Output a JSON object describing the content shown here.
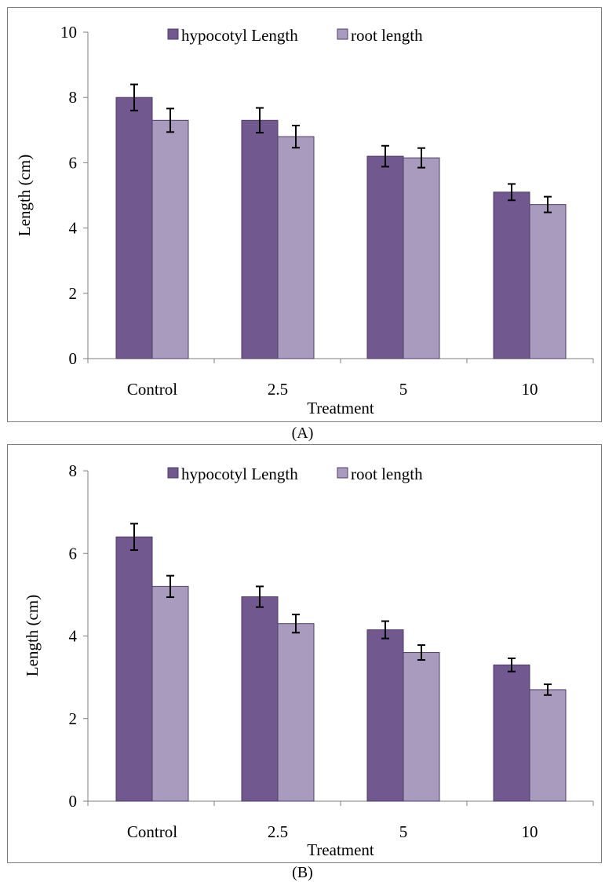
{
  "colors": {
    "hypocotyl": "#71588f",
    "root": "#a99bbd",
    "bar_stroke": "#4f3b69",
    "axis": "#7f7f7f"
  },
  "chart_data": [
    {
      "id": "A",
      "type": "bar",
      "caption": "(A)",
      "xlabel": "Treatment",
      "ylabel": "Length (cm)",
      "categories": [
        "Control",
        "2.5",
        "5",
        "10"
      ],
      "ylim": [
        0,
        10
      ],
      "yticks": [
        0,
        2,
        4,
        6,
        8,
        10
      ],
      "legend_position": "top-center",
      "grid": false,
      "series": [
        {
          "name": "hypocotyl Length",
          "values": [
            8.0,
            7.3,
            6.2,
            5.1
          ],
          "errors": [
            0.4,
            0.38,
            0.32,
            0.25
          ]
        },
        {
          "name": "root length",
          "values": [
            7.3,
            6.8,
            6.15,
            4.72
          ],
          "errors": [
            0.36,
            0.34,
            0.3,
            0.24
          ]
        }
      ]
    },
    {
      "id": "B",
      "type": "bar",
      "caption": "(B)",
      "xlabel": "Treatment",
      "ylabel": "Length (cm)",
      "categories": [
        "Control",
        "2.5",
        "5",
        "10"
      ],
      "ylim": [
        0,
        8
      ],
      "yticks": [
        0,
        2,
        4,
        6,
        8
      ],
      "legend_position": "top-center",
      "grid": false,
      "series": [
        {
          "name": "hypocotyl Length",
          "values": [
            6.4,
            4.95,
            4.15,
            3.3
          ],
          "errors": [
            0.32,
            0.25,
            0.21,
            0.16
          ]
        },
        {
          "name": "root length",
          "values": [
            5.2,
            4.3,
            3.6,
            2.7
          ],
          "errors": [
            0.26,
            0.22,
            0.18,
            0.13
          ]
        }
      ]
    }
  ]
}
